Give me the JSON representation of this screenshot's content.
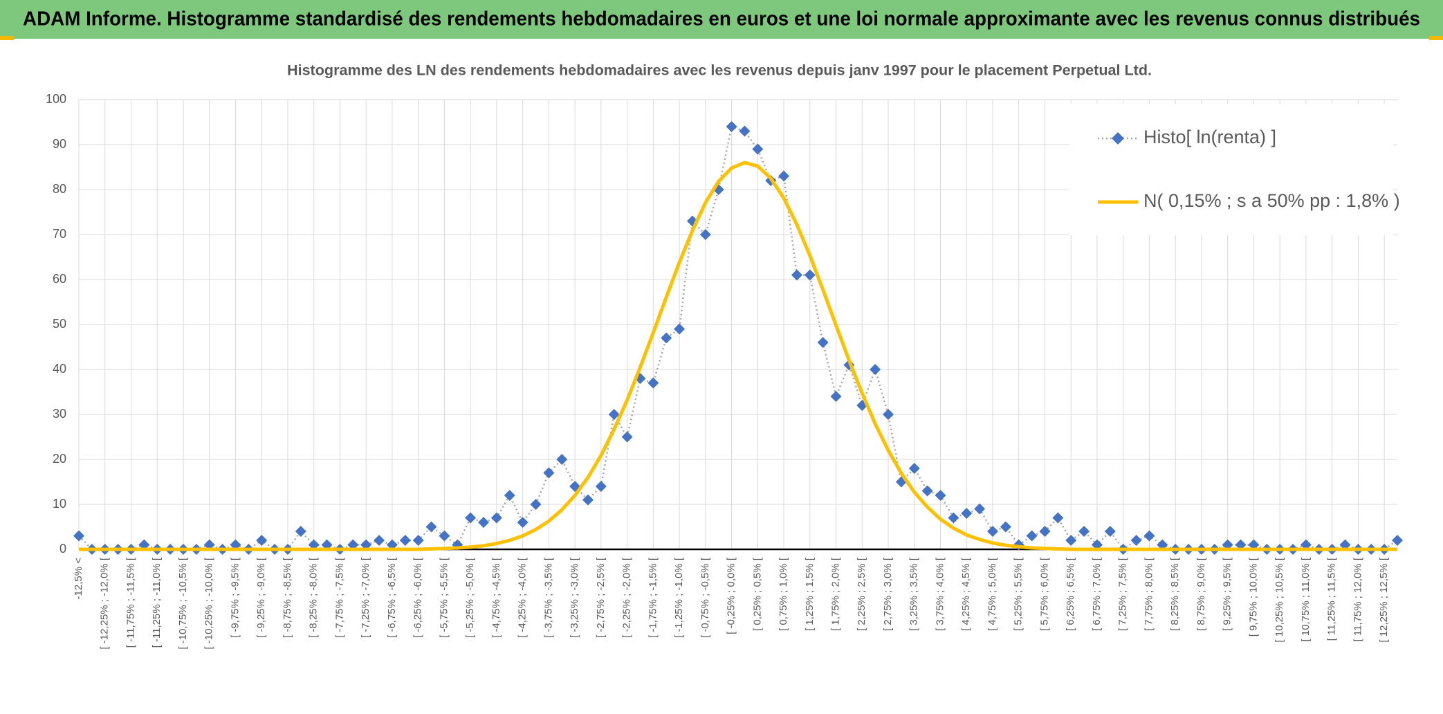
{
  "header": {
    "title": "ADAM Informe. Histogramme standardisé des rendements hebdomadaires en euros et une loi normale approximante avec les revenus connus distribués"
  },
  "chart_data": {
    "type": "line",
    "title": "Histogramme des LN des rendements hebdomadaires avec les revenus depuis janv 1997 pour le placement Perpetual Ltd.",
    "categories": [
      "-12,5% <",
      null,
      "[ -12,25% ; -12,0% [",
      null,
      "[ -11,75% ; -11,5% [",
      null,
      "[ -11,25% ; -11,0% [",
      null,
      "[ -10,75% ; -10,5% [",
      null,
      "[ -10,25% ; -10,0% [",
      null,
      "[ -9,75% ; -9,5% [",
      null,
      "[ -9,25% ; -9,0% [",
      null,
      "[ -8,75% ; -8,5% [",
      null,
      "[ -8,25% ; -8,0% [",
      null,
      "[ -7,75% ; -7,5% [",
      null,
      "[ -7,25% ; -7,0% [",
      null,
      "[ -6,75% ; -6,5% [",
      null,
      "[ -6,25% ; -6,0% [",
      null,
      "[ -5,75% ; -5,5% [",
      null,
      "[ -5,25% ; -5,0% [",
      null,
      "[ -4,75% ; -4,5% [",
      null,
      "[ -4,25% ; -4,0% [",
      null,
      "[ -3,75% ; -3,5% [",
      null,
      "[ -3,25% ; -3,0% [",
      null,
      "[ -2,75% ; -2,5% [",
      null,
      "[ -2,25% ; -2,0% [",
      null,
      "[ -1,75% ; -1,5% [",
      null,
      "[ -1,25% ; -1,0% [",
      null,
      "[ -0,75% ; -0,5% [",
      null,
      "[ -0,25% ; 0,0% [",
      null,
      "[ 0,25% ; 0,5% [",
      null,
      "[ 0,75% ; 1,0% [",
      null,
      "[ 1,25% ; 1,5% [",
      null,
      "[ 1,75% ; 2,0% [",
      null,
      "[ 2,25% ; 2,5% [",
      null,
      "[ 2,75% ; 3,0% [",
      null,
      "[ 3,25% ; 3,5% [",
      null,
      "[ 3,75% ; 4,0% [",
      null,
      "[ 4,25% ; 4,5% [",
      null,
      "[ 4,75% ; 5,0% [",
      null,
      "[ 5,25% ; 5,5% [",
      null,
      "[ 5,75% ; 6,0% [",
      null,
      "[ 6,25% ; 6,5% [",
      null,
      "[ 6,75% ; 7,0% [",
      null,
      "[ 7,25% ; 7,5% [",
      null,
      "[ 7,75% ; 8,0% [",
      null,
      "[ 8,25% ; 8,5% [",
      null,
      "[ 8,75% ; 9,0% [",
      null,
      "[ 9,25% ; 9,5% [",
      null,
      "[ 9,75% ; 10,0% [",
      null,
      "[ 10,25% ; 10,5% [",
      null,
      "[ 10,75% ; 11,0% [",
      null,
      "[ 11,25% ; 11,5% [",
      null,
      "[ 11,75% ; 12,0% [",
      null,
      "[ 12,25% ; 12,5% [",
      null
    ],
    "series": [
      {
        "name": "Histo[ ln(renta) ]",
        "color": "#4472c4",
        "line_color": "#a5a5a5",
        "line_style": "dotted",
        "marker": "diamond",
        "values": [
          3,
          0,
          0,
          0,
          0,
          1,
          0,
          0,
          0,
          0,
          1,
          0,
          1,
          0,
          2,
          0,
          0,
          4,
          1,
          1,
          0,
          1,
          1,
          2,
          1,
          2,
          2,
          5,
          3,
          1,
          7,
          6,
          7,
          12,
          6,
          10,
          17,
          20,
          14,
          11,
          14,
          30,
          25,
          38,
          37,
          47,
          49,
          73,
          70,
          80,
          94,
          93,
          89,
          82,
          83,
          61,
          61,
          46,
          34,
          41,
          32,
          40,
          30,
          15,
          18,
          13,
          12,
          7,
          8,
          9,
          4,
          5,
          1,
          3,
          4,
          7,
          2,
          4,
          1,
          4,
          0,
          2,
          3,
          1,
          0,
          0,
          0,
          0,
          1,
          1,
          1,
          0,
          0,
          0,
          1,
          0,
          0,
          1,
          0,
          0,
          0,
          2
        ]
      },
      {
        "name": "N( 0,15% ; s a 50% pp : 1,8% )",
        "color": "#ffc000",
        "line_style": "solid",
        "marker": "none",
        "values": [
          0,
          0,
          0,
          0,
          0,
          0,
          0,
          0,
          0,
          0,
          0,
          0,
          0,
          0,
          0,
          0,
          0,
          0,
          0,
          0,
          0,
          0,
          0,
          0,
          0,
          0,
          0,
          0.1,
          0.2,
          0.3,
          0.5,
          0.8,
          1.3,
          2.0,
          3.0,
          4.4,
          6.3,
          8.8,
          12.0,
          16.0,
          20.9,
          26.7,
          33.2,
          40.5,
          48.2,
          56.1,
          63.8,
          70.9,
          77.1,
          81.8,
          84.8,
          86.0,
          85.2,
          82.5,
          78.1,
          72.2,
          65.3,
          57.7,
          49.8,
          42.0,
          34.7,
          27.9,
          22.0,
          16.9,
          12.7,
          9.4,
          6.7,
          4.7,
          3.2,
          2.2,
          1.4,
          0.9,
          0.6,
          0.3,
          0.2,
          0.1,
          0,
          0,
          0,
          0,
          0,
          0,
          0,
          0,
          0,
          0,
          0,
          0,
          0,
          0,
          0,
          0,
          0,
          0,
          0,
          0,
          0,
          0,
          0,
          0,
          0,
          0
        ]
      }
    ],
    "ylim": [
      0,
      100
    ],
    "yticks": [
      0,
      10,
      20,
      30,
      40,
      50,
      60,
      70,
      80,
      90,
      100
    ],
    "grid": true,
    "legend": "top-right"
  }
}
